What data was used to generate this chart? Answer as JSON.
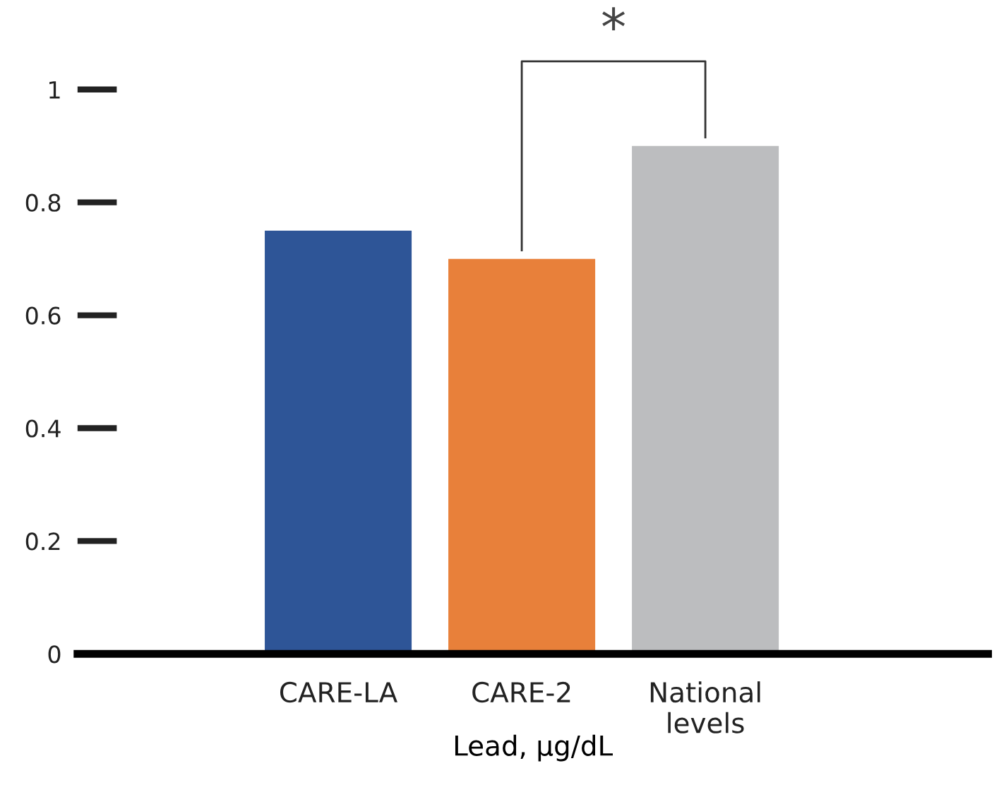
{
  "chart_data": {
    "type": "bar",
    "categories": [
      "CARE-LA",
      "CARE-2",
      "National\nlevels"
    ],
    "values": [
      0.75,
      0.7,
      0.9
    ],
    "colors": [
      "#2e5597",
      "#e8803a",
      "#bcbdbf"
    ],
    "xlabel": "Lead, µg/dL",
    "ylim": [
      0,
      1
    ],
    "yticks": [
      0,
      0.2,
      0.4,
      0.6,
      0.8,
      1
    ],
    "annotations": [
      "*"
    ],
    "grid": false,
    "legend": false
  }
}
